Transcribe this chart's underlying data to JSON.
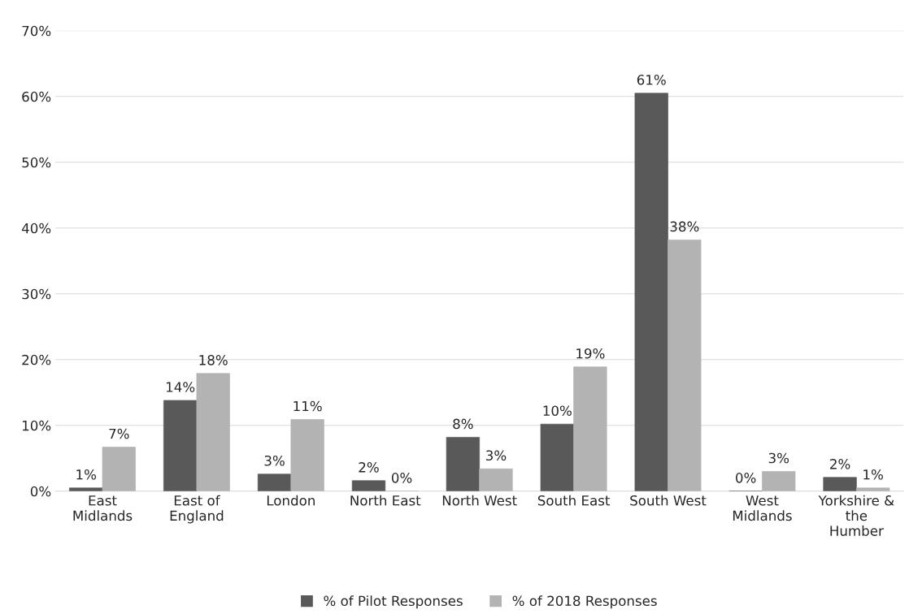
{
  "chart_data": {
    "type": "bar",
    "categories": [
      "East\nMidlands",
      "East of\nEngland",
      "London",
      "North East",
      "North West",
      "South East",
      "South West",
      "West\nMidlands",
      "Yorkshire &\nthe\nHumber"
    ],
    "series": [
      {
        "name": "% of Pilot Responses",
        "color": "#595959",
        "values": [
          0.5,
          13.8,
          2.6,
          1.6,
          8.2,
          10.2,
          60.5,
          0,
          2.1
        ],
        "value_labels": [
          "1%",
          "14%",
          "3%",
          "2%",
          "8%",
          "10%",
          "61%",
          "0%",
          "2%"
        ]
      },
      {
        "name": "% of 2018 Responses",
        "color": "#b3b3b3",
        "values": [
          6.7,
          17.9,
          10.9,
          0,
          3.4,
          18.9,
          38.2,
          3.0,
          0.5
        ],
        "value_labels": [
          "7%",
          "18%",
          "11%",
          "0%",
          "3%",
          "19%",
          "38%",
          "3%",
          "1%"
        ]
      }
    ],
    "ylim": [
      0,
      70
    ],
    "yticks": [
      {
        "value": 0,
        "label": "0%"
      },
      {
        "value": 10,
        "label": "10%"
      },
      {
        "value": 20,
        "label": "20%"
      },
      {
        "value": 30,
        "label": "30%"
      },
      {
        "value": 40,
        "label": "40%"
      },
      {
        "value": 50,
        "label": "50%"
      },
      {
        "value": 60,
        "label": "60%"
      },
      {
        "value": 70,
        "label": "70%"
      }
    ],
    "grid": "y",
    "legend": "bottom"
  }
}
